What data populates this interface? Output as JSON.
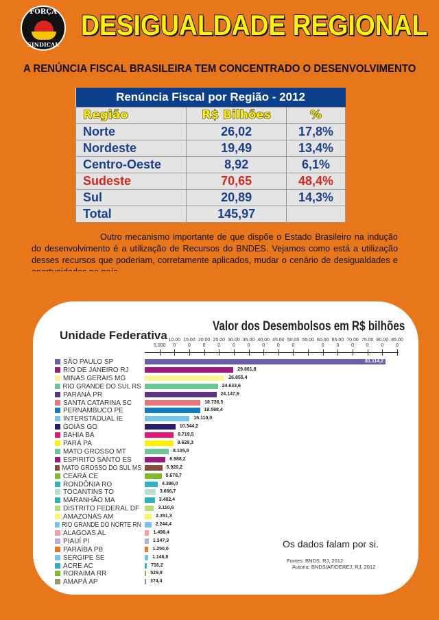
{
  "logo": {
    "text_top": "FORÇA",
    "text_bottom": "SINDICAL"
  },
  "header": {
    "title": "DESIGUALDADE REGIONAL",
    "subtitle": "A RENÚNCIA FISCAL BRASILEIRA TEM CONCENTRADO O DESENVOLVIMENTO"
  },
  "table": {
    "caption": "Renúncia Fiscal por Região - 2012",
    "headers": [
      "Região",
      "R$ Bilhões",
      "%"
    ],
    "rows": [
      [
        "Norte",
        "26,02",
        "17,8%"
      ],
      [
        "Nordeste",
        "19,49",
        "13,4%"
      ],
      [
        "Centro-Oeste",
        "8,92",
        "6,1%"
      ],
      [
        "Sudeste",
        "70,65",
        "48,4%"
      ],
      [
        "Sul",
        "20,89",
        "14,3%"
      ],
      [
        "Total",
        "145,97",
        ""
      ]
    ],
    "highlight_color": "#d9261c"
  },
  "paragraph": "Outro mecanismo importante de que dispõe o Estado Brasileiro na indução do desenvolvimento é a utilização de Recursos do BNDES. Vejamos como está a utilização desses recursos que poderiam, corretamente aplicados, mudar o cenário de desigualdades e oportunidades no país.",
  "chart_data": {
    "type": "bar",
    "orientation": "horizontal",
    "title": "Valor dos Desembolsos em R$ bilhões",
    "legend_title": "Unidade Federativa",
    "xlim": [
      0,
      85000
    ],
    "tick_labels": [
      "5.000",
      "10.000",
      "15.000",
      "20.000",
      "25.000",
      "30.000",
      "35.000",
      "40.000",
      "45.000",
      "50.000",
      "55.00",
      "60.000",
      "65.000",
      "70.000",
      "75.000",
      "80.000",
      "85.000"
    ],
    "categories": [
      "SÃO PAULO SP",
      "RIO DE JANEIRO RJ",
      "MINAS GERAIS MG",
      "RIO GRANDE DO SUL RS",
      "PARANÁ PR",
      "SANTA CATARINA SC",
      "PERNAMBUCO PE",
      "INTERSTADUAL IE",
      "GOIÁS GO",
      "BAHIA BA",
      "PARÁ PA",
      "MATO GROSSO MT",
      "ESPIRITO SANTO ES",
      "MATO GROSSO DO SUL MS",
      "CEARÁ CE",
      "RONDÔNIA RO",
      "TOCANTINS TO",
      "MARANHÃO MA",
      "DISTRITO FEDERAL DF",
      "AMAZONAS AM",
      "RIO GRANDE DO NORTE RN",
      "ALAGOAS AL",
      "PIAUÍ PI",
      "PARAÍBA PB",
      "SERGIPE SE",
      "ACRE AC",
      "RORAIMA RR",
      "AMAPÁ AP"
    ],
    "values": [
      81114.2,
      29861.8,
      26855.4,
      24633.6,
      24147.6,
      18736.5,
      18598.4,
      15110.0,
      10344.2,
      9719.5,
      9628.3,
      8105.8,
      6988.2,
      5920.2,
      5678.7,
      4386.0,
      3666.7,
      3402.4,
      3110.6,
      2351.3,
      2244.4,
      1498.4,
      1347.3,
      1250.0,
      1146.8,
      716.2,
      529.9,
      374.4
    ],
    "value_labels": [
      "81.114,2",
      "29.861,8",
      "26.855,4",
      "24.633,6",
      "24.147,6",
      "18.736,5",
      "18.598,4",
      "15.110,0",
      "10.344,2",
      "9.719,5",
      "9.628,3",
      "8.105,8",
      "6.988,2",
      "5.920,2",
      "5.678,7",
      "4.386,0",
      "3.666,7",
      "3.402,4",
      "3.110,6",
      "2.351,3",
      "2.244,4",
      "1.498,4",
      "1.347,3",
      "1.250,0",
      "1.146,8",
      "716,2",
      "529,9",
      "374,4"
    ],
    "colors": [
      "#6f5fa6",
      "#9b1b7c",
      "#fbf59a",
      "#6cc499",
      "#5b3580",
      "#e8757a",
      "#0f7dc2",
      "#74c4ee",
      "#2a1c6e",
      "#e6197a",
      "#fff200",
      "#6cc499",
      "#9b1b7c",
      "#8b4b3b",
      "#7dbb2b",
      "#2fb1c0",
      "#b5e0cc",
      "#2fb1c0",
      "#b5dc7a",
      "#fbf56a",
      "#74c4ee",
      "#f2a0a8",
      "#b8b0d8",
      "#e8771c",
      "#74c4ee",
      "#2fb1c0",
      "#7dbb2b",
      "#9a9470"
    ]
  },
  "note": "Os dados falam por si.",
  "sources": [
    "Fontes: BNDS, RJ, 2012",
    "Autoria: BNDS/AF/DEREJ, RJ, 2012"
  ]
}
